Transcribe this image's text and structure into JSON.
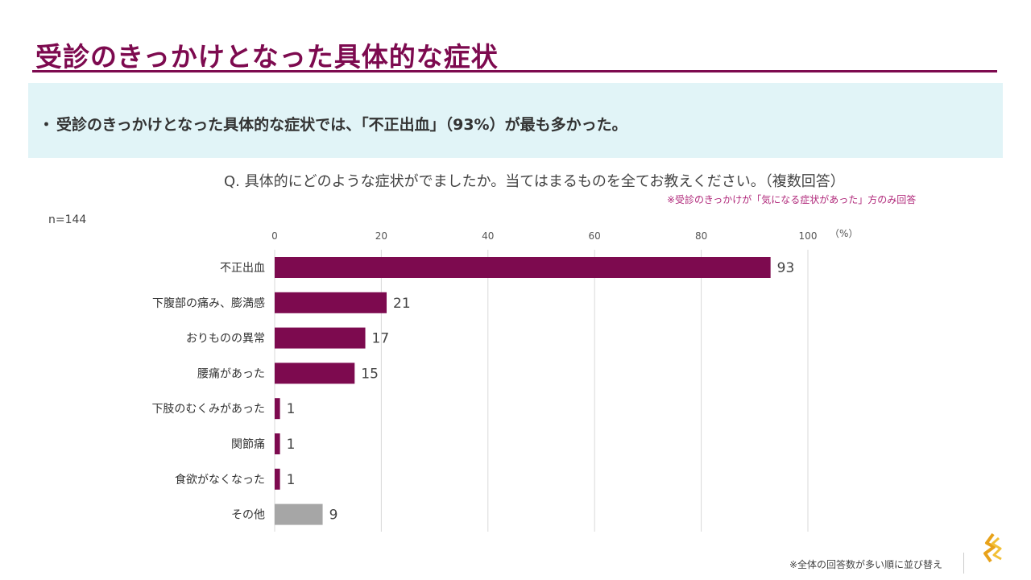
{
  "page": {
    "title": "受診のきっかけとなった具体的な症状",
    "summary_bullet": "・",
    "summary": "受診のきっかけとなった具体的な症状では、「不正出血」（93%）が最も多かった。",
    "question": "Q. 具体的にどのような症状がでましたか。当てはまるものを全てお教えください。（複数回答）",
    "note_top": "※受診のきっかけが「気になる症状があった」方のみ回答",
    "n_label": "n=144",
    "note_bottom": "※全体の回答数が多い順に並び替え",
    "unit_label": "（%）"
  },
  "colors": {
    "title": "#7d0a4f",
    "bar": "#7d0a4f",
    "other_bar": "#a6a6a6",
    "summary_bg": "#e1f4f7",
    "note": "#b0287a"
  },
  "chart_data": {
    "type": "bar",
    "orientation": "horizontal",
    "categories": [
      "不正出血",
      "下腹部の痛み、膨満感",
      "おりものの異常",
      "腰痛があった",
      "下肢のむくみがあった",
      "関節痛",
      "食欲がなくなった",
      "その他"
    ],
    "values": [
      93,
      21,
      17,
      15,
      1,
      1,
      1,
      9
    ],
    "highlight": [
      false,
      false,
      false,
      false,
      false,
      false,
      false,
      true
    ],
    "xlim": [
      0,
      100
    ],
    "xticks": [
      0,
      20,
      40,
      60,
      80,
      100
    ],
    "xlabel": "（%）",
    "grid": true
  }
}
